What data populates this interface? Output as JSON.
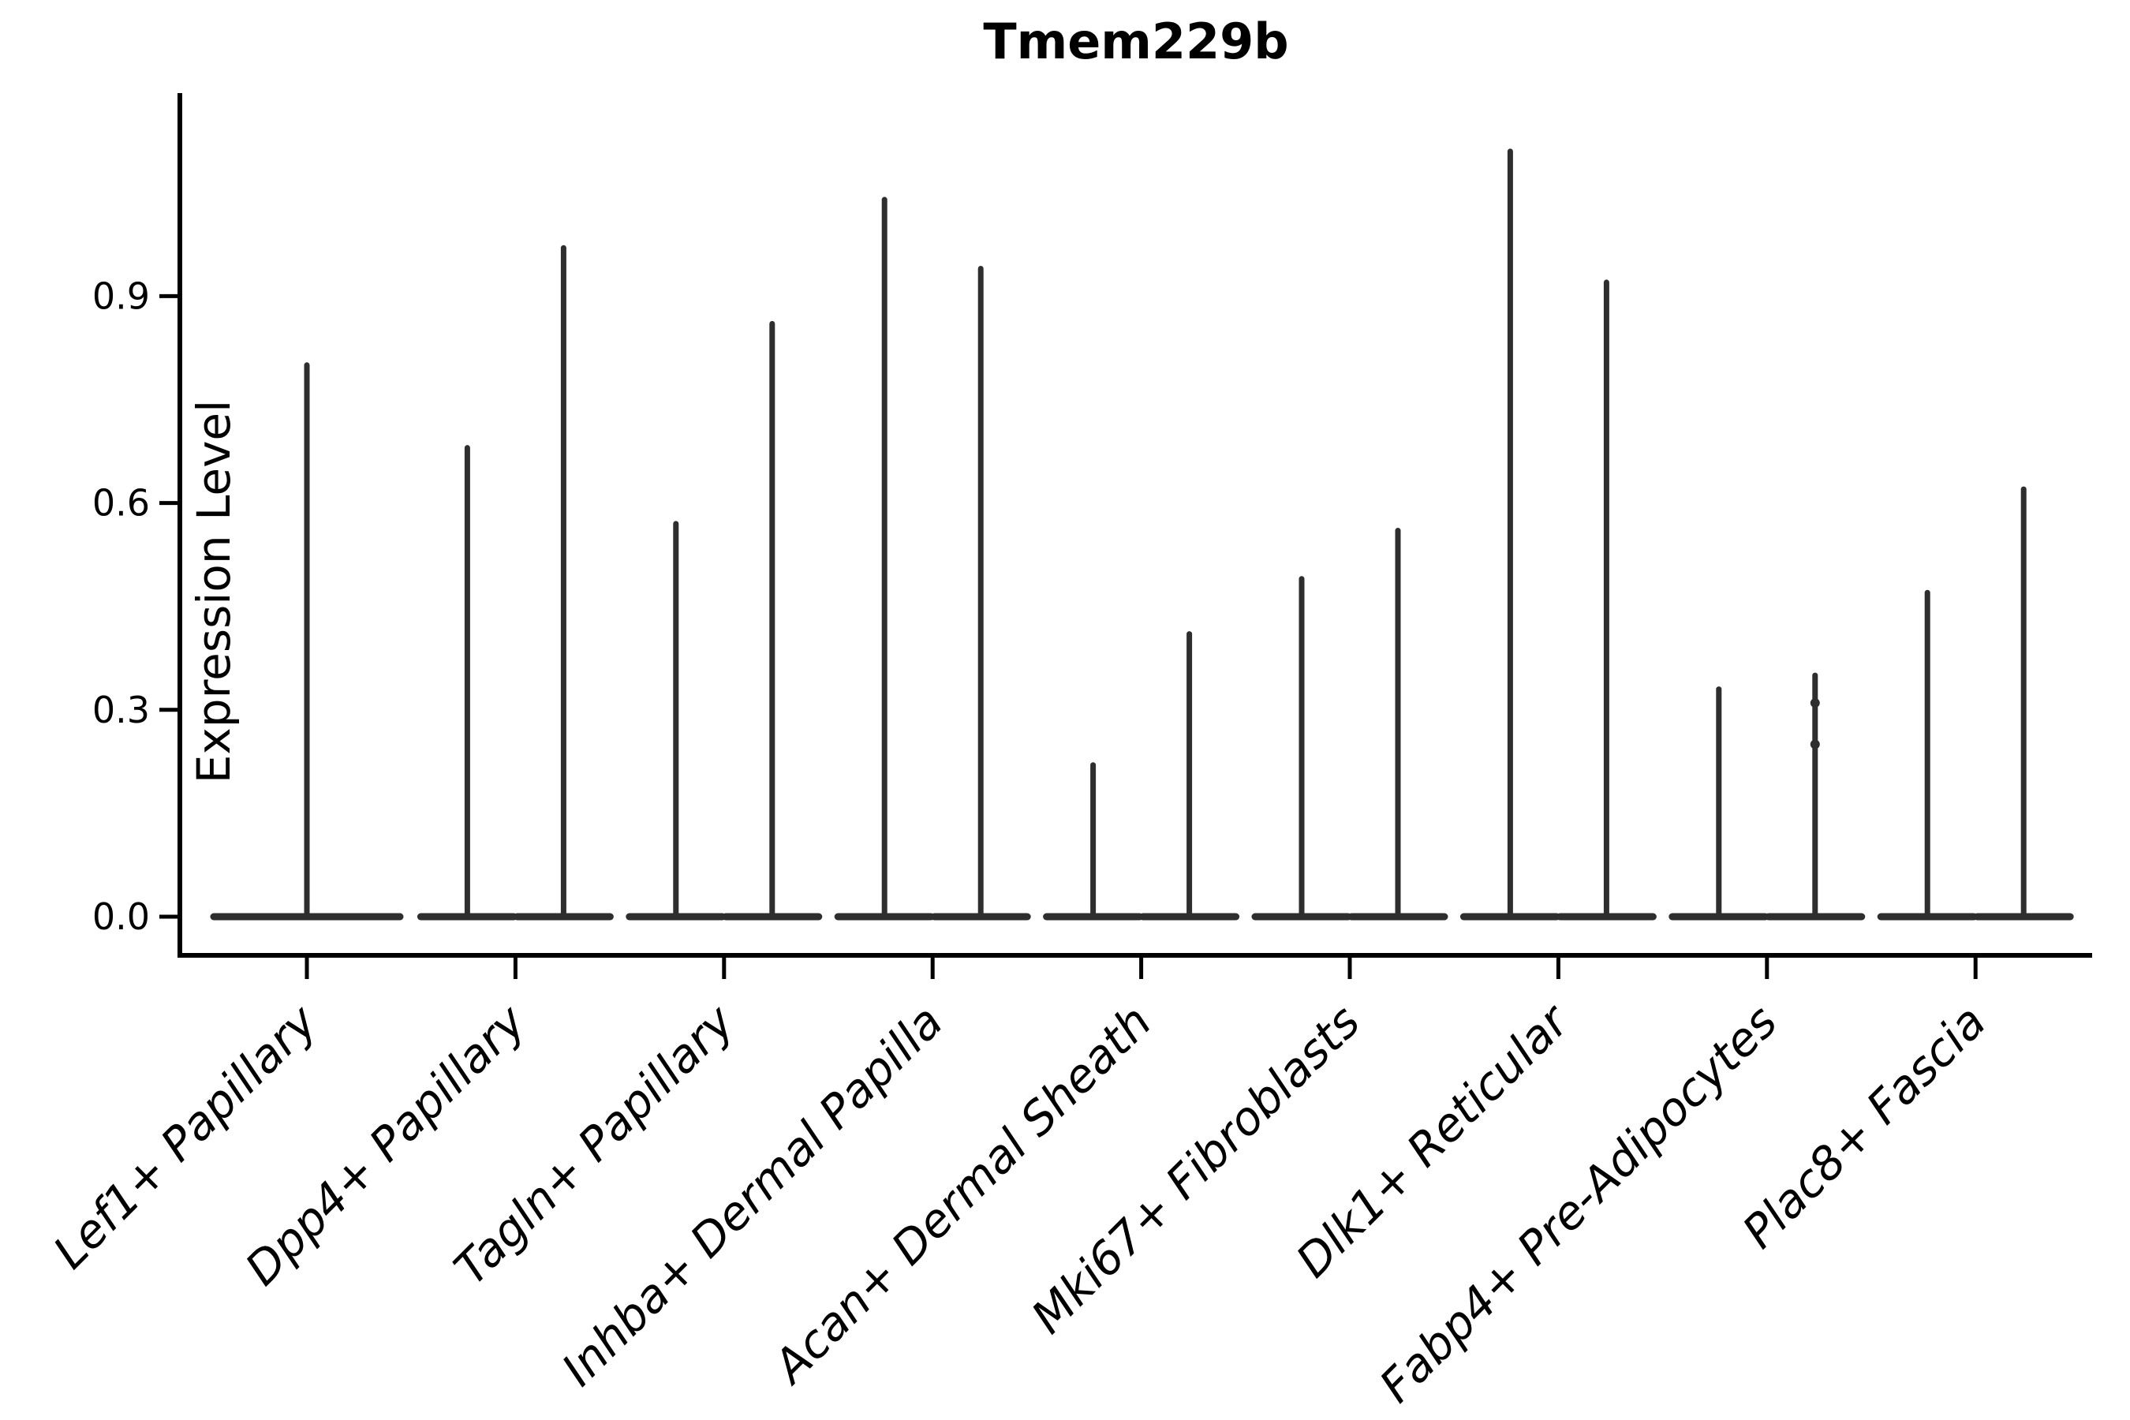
{
  "chart_data": {
    "type": "violin",
    "title": "Tmem229b",
    "ylabel": "Expression Level",
    "xlabel": "",
    "ylim": [
      0,
      1.19
    ],
    "grid": false,
    "legend": "none",
    "yticks": [
      {
        "label": "0.0",
        "value": 0.0
      },
      {
        "label": "0.3",
        "value": 0.3
      },
      {
        "label": "0.6",
        "value": 0.6
      },
      {
        "label": "0.9",
        "value": 0.9
      }
    ],
    "description": "Violin plot of Tmem229b expression; most cells at 0 giving flat wide bases with thin spikes up to the maximum expression per violin. Most categories contain two violins side by side.",
    "categories": [
      {
        "label": "Lef1+ Papillary",
        "violin_maxima": [
          0.8
        ]
      },
      {
        "label": "Dpp4+ Papillary",
        "violin_maxima": [
          0.68,
          0.97
        ]
      },
      {
        "label": "Tagln+ Papillary",
        "violin_maxima": [
          0.57,
          0.86
        ]
      },
      {
        "label": "Inhba+ Dermal Papilla",
        "violin_maxima": [
          1.04,
          0.94
        ]
      },
      {
        "label": "Acan+ Dermal Sheath",
        "violin_maxima": [
          0.22,
          0.41
        ]
      },
      {
        "label": "Mki67+ Fibroblasts",
        "violin_maxima": [
          0.49,
          0.56
        ]
      },
      {
        "label": "Dlk1+ Reticular",
        "violin_maxima": [
          1.11,
          0.92
        ]
      },
      {
        "label": "Fabp4+ Pre-Adipocytes",
        "violin_maxima": [
          0.33,
          0.35
        ],
        "point_values": [
          {
            "violin": 1,
            "values": [
              0.31,
              0.25
            ]
          }
        ]
      },
      {
        "label": "Plac8+ Fascia",
        "violin_maxima": [
          0.47,
          0.62
        ]
      }
    ],
    "colors": {
      "violin": "#2e2e2e",
      "axis": "#000000",
      "text": "#000000",
      "background": "#ffffff"
    }
  }
}
